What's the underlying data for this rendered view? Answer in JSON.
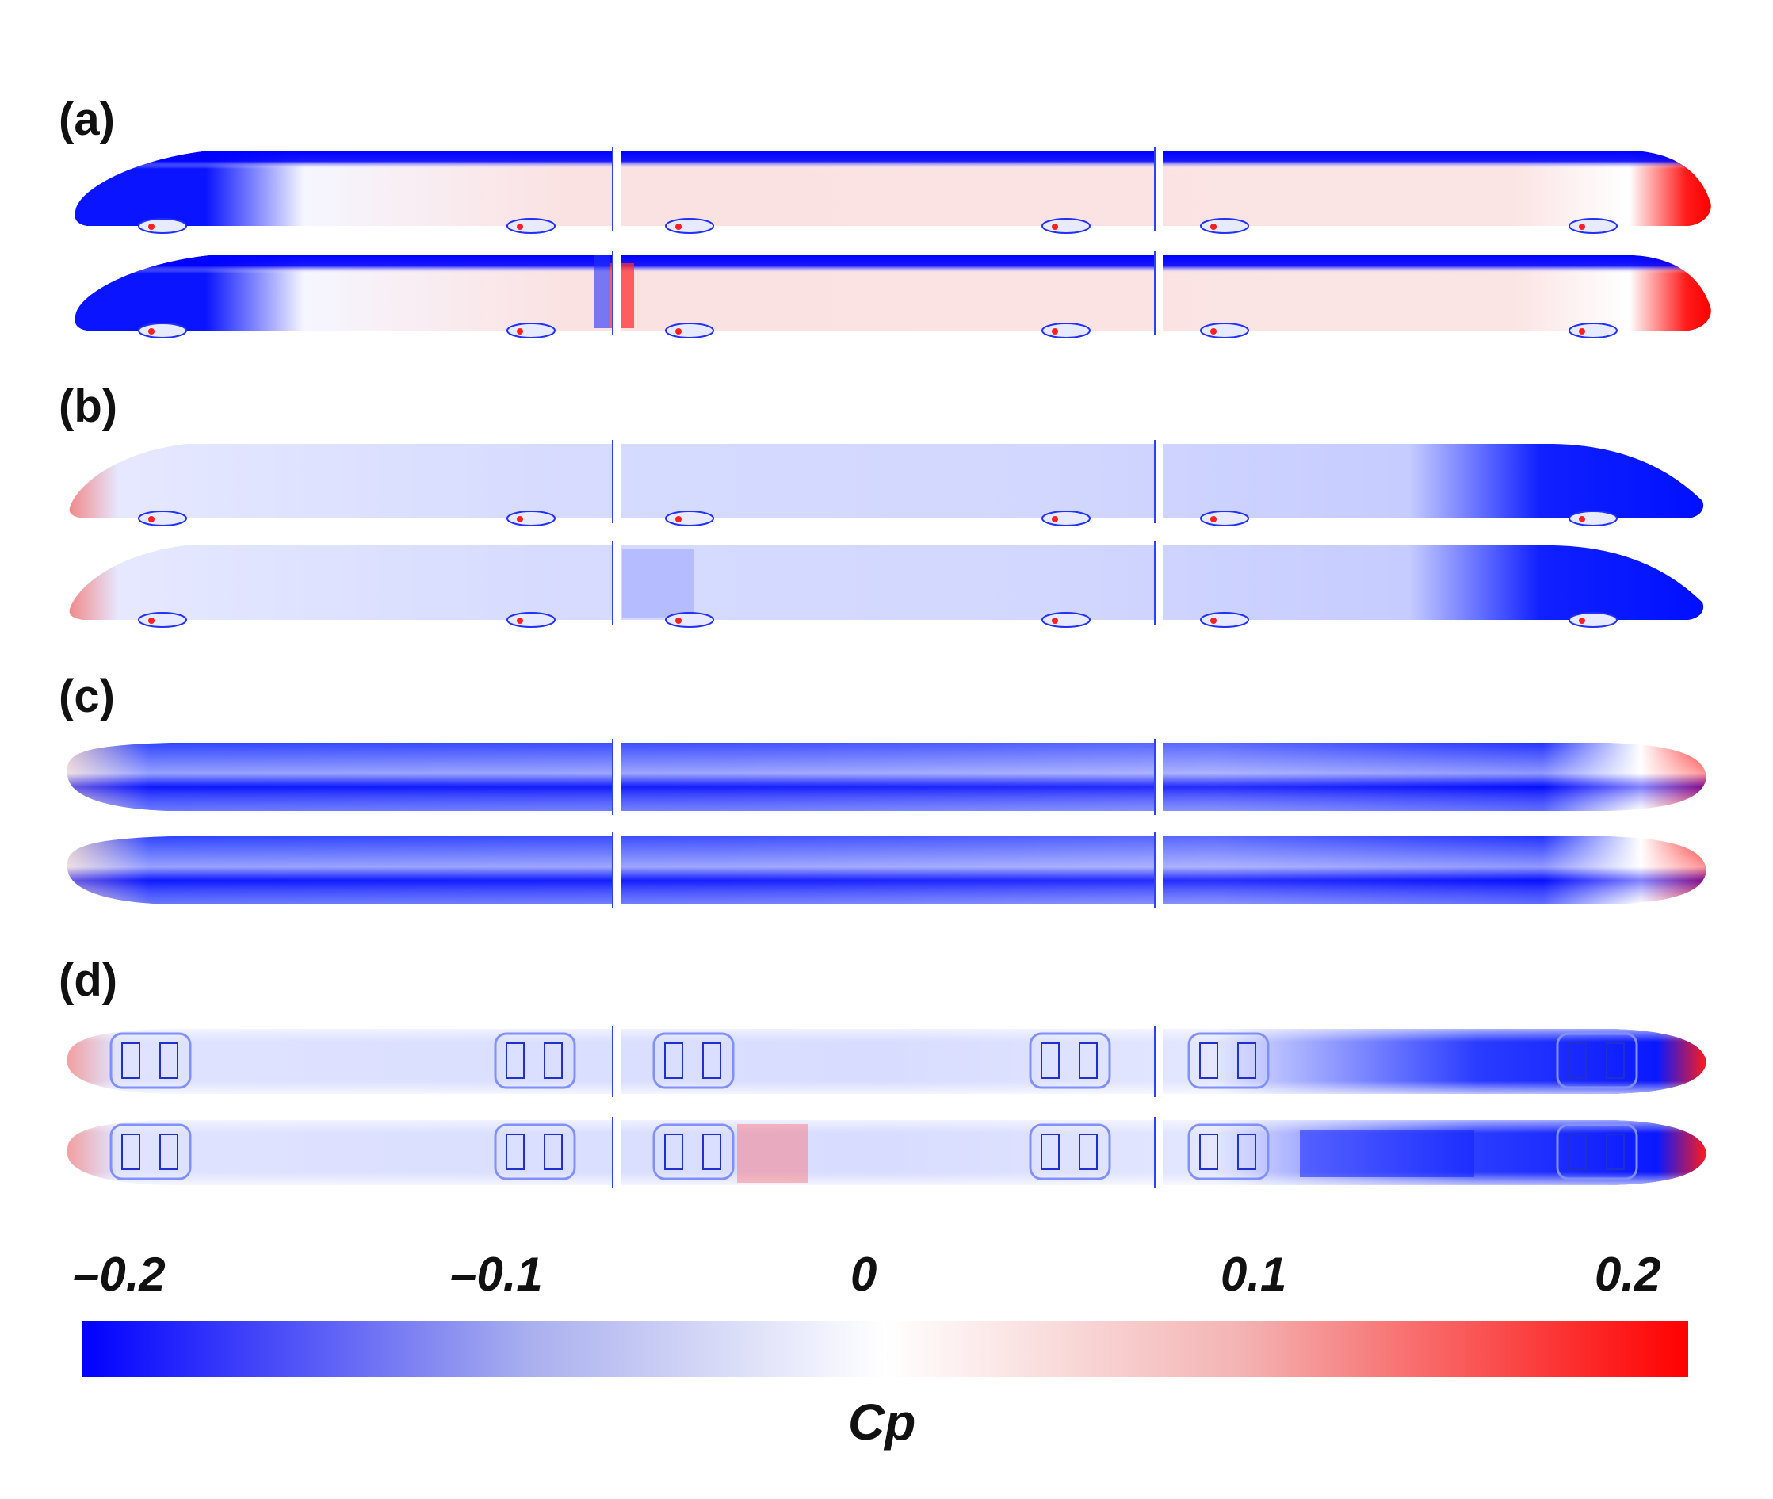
{
  "panels": [
    {
      "label": "(a)"
    },
    {
      "label": "(b)"
    },
    {
      "label": "(c)"
    },
    {
      "label": "(d)"
    }
  ],
  "colorbar": {
    "ticks": [
      "–0.2",
      "–0.1",
      "0",
      "0.1",
      "0.2"
    ],
    "label": "Cp",
    "min": -0.2,
    "max": 0.2,
    "colors": {
      "negative": "#0000ff",
      "zero": "#ffffff",
      "positive": "#ff0000"
    }
  }
}
